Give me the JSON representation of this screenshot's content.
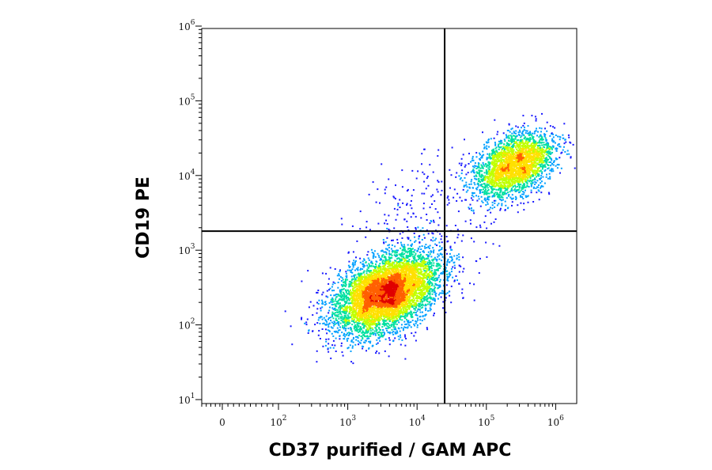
{
  "chart_data": {
    "type": "scatter",
    "subtype": "flow-cytometry-density-plot",
    "xlabel": "CD37 purified / GAM APC",
    "ylabel": "CD19 PE",
    "x_scale": "biexponential",
    "y_scale": "log",
    "xlim": [
      -200,
      1000000
    ],
    "ylim": [
      10,
      1000000
    ],
    "x_ticks": [
      {
        "value": 0,
        "base": "0",
        "exp": ""
      },
      {
        "value": 100,
        "base": "10",
        "exp": "2"
      },
      {
        "value": 1000,
        "base": "10",
        "exp": "3"
      },
      {
        "value": 10000,
        "base": "10",
        "exp": "4"
      },
      {
        "value": 100000,
        "base": "10",
        "exp": "5"
      },
      {
        "value": 1000000,
        "base": "10",
        "exp": "6"
      }
    ],
    "y_ticks": [
      {
        "value": 10,
        "base": "10",
        "exp": "1"
      },
      {
        "value": 100,
        "base": "10",
        "exp": "2"
      },
      {
        "value": 1000,
        "base": "10",
        "exp": "3"
      },
      {
        "value": 10000,
        "base": "10",
        "exp": "4"
      },
      {
        "value": 100000,
        "base": "10",
        "exp": "5"
      },
      {
        "value": 1000000,
        "base": "10",
        "exp": "6"
      }
    ],
    "quadrant_gates": {
      "x": 25000,
      "y": 1800
    },
    "grid": false,
    "legend": "none",
    "colormap": [
      "#1a1aff",
      "#00a0ff",
      "#00e0a0",
      "#c0ff00",
      "#ffe000",
      "#ff6000",
      "#e00000"
    ],
    "populations": [
      {
        "x_center": 3500,
        "y_center": 270,
        "x_spread_decades": 0.42,
        "y_spread_decades": 0.3,
        "rotation_deg": 32,
        "relative_density": 1.0
      },
      {
        "x_center": 250000,
        "y_center": 14000,
        "x_spread_decades": 0.32,
        "y_spread_decades": 0.25,
        "rotation_deg": 35,
        "relative_density": 0.45
      },
      {
        "x_center": 15000,
        "y_center": 3000,
        "x_spread_decades": 0.55,
        "y_spread_decades": 0.5,
        "rotation_deg": 30,
        "relative_density": 0.04
      }
    ]
  }
}
